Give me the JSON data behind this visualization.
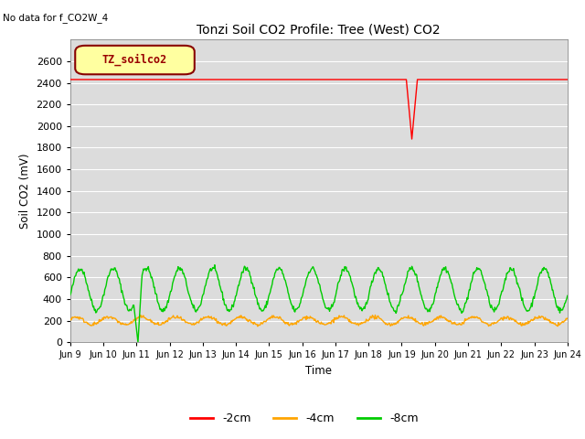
{
  "title": "Tonzi Soil CO2 Profile: Tree (West) CO2",
  "no_data_text": "No data for f_CO2W_4",
  "legend_box_label": "TZ_soilco2",
  "ylabel": "Soil CO2 (mV)",
  "xlabel": "Time",
  "ylim": [
    0,
    2800
  ],
  "yticks": [
    0,
    200,
    400,
    600,
    800,
    1000,
    1200,
    1400,
    1600,
    1800,
    2000,
    2200,
    2400,
    2600
  ],
  "bg_color": "#dcdcdc",
  "fig_color": "#ffffff",
  "series": {
    "neg2cm": {
      "label": "-2cm",
      "color": "#ff0000",
      "linewidth": 1.0
    },
    "neg4cm": {
      "label": "-4cm",
      "color": "#ffa500",
      "linewidth": 1.0
    },
    "neg8cm": {
      "label": "-8cm",
      "color": "#00cc00",
      "linewidth": 1.0
    }
  },
  "xstart_day": 9,
  "xend_day": 24,
  "xtick_labels": [
    "Jun 9",
    "Jun 10",
    "Jun 11",
    "Jun 12",
    "Jun 13",
    "Jun 14",
    "Jun 15",
    "Jun 16",
    "Jun 17",
    "Jun 18",
    "Jun 19",
    "Jun 20",
    "Jun 21",
    "Jun 22",
    "Jun 23",
    "Jun 24"
  ]
}
